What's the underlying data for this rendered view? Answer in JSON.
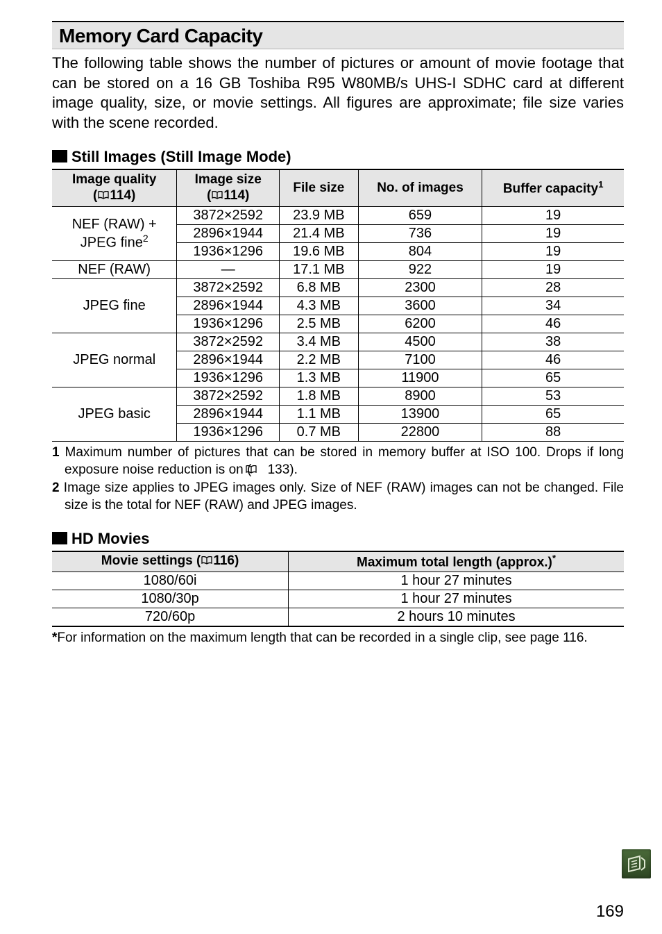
{
  "header": {
    "title": "Memory Card Capacity"
  },
  "intro": "The following table shows the number of pictures or amount of movie footage that can be stored on a 16 GB Toshiba R95 W80MB/s UHS-I SDHC card at different image quality, size, or movie settings. All figures are approximate; file size varies with the scene recorded.",
  "still": {
    "heading": "Still Images (Still Image Mode)",
    "columns": {
      "c1a": "Image quality",
      "c1b_ref": "114",
      "c2a": "Image size",
      "c2b_ref": "114",
      "c3": "File size",
      "c4": "No. of images",
      "c5": "Buffer capacity",
      "c5_sup": "1"
    },
    "groups": [
      {
        "label_line1": "NEF (RAW) +",
        "label_line2": "JPEG fine",
        "label_sup": "2",
        "rows": [
          {
            "size": "3872×2592",
            "file": "23.9 MB",
            "num": "659",
            "buf": "19"
          },
          {
            "size": "2896×1944",
            "file": "21.4 MB",
            "num": "736",
            "buf": "19"
          },
          {
            "size": "1936×1296",
            "file": "19.6 MB",
            "num": "804",
            "buf": "19"
          }
        ]
      },
      {
        "label_line1": "NEF (RAW)",
        "label_line2": "",
        "label_sup": "",
        "rows": [
          {
            "size": "―",
            "file": "17.1 MB",
            "num": "922",
            "buf": "19"
          }
        ]
      },
      {
        "label_line1": "JPEG fine",
        "label_line2": "",
        "label_sup": "",
        "rows": [
          {
            "size": "3872×2592",
            "file": "6.8 MB",
            "num": "2300",
            "buf": "28"
          },
          {
            "size": "2896×1944",
            "file": "4.3 MB",
            "num": "3600",
            "buf": "34"
          },
          {
            "size": "1936×1296",
            "file": "2.5 MB",
            "num": "6200",
            "buf": "46"
          }
        ]
      },
      {
        "label_line1": "JPEG normal",
        "label_line2": "",
        "label_sup": "",
        "rows": [
          {
            "size": "3872×2592",
            "file": "3.4 MB",
            "num": "4500",
            "buf": "38"
          },
          {
            "size": "2896×1944",
            "file": "2.2 MB",
            "num": "7100",
            "buf": "46"
          },
          {
            "size": "1936×1296",
            "file": "1.3 MB",
            "num": "11900",
            "buf": "65"
          }
        ]
      },
      {
        "label_line1": "JPEG basic",
        "label_line2": "",
        "label_sup": "",
        "rows": [
          {
            "size": "3872×2592",
            "file": "1.8 MB",
            "num": "8900",
            "buf": "53"
          },
          {
            "size": "2896×1944",
            "file": "1.1 MB",
            "num": "13900",
            "buf": "65"
          },
          {
            "size": "1936×1296",
            "file": "0.7 MB",
            "num": "22800",
            "buf": "88"
          }
        ]
      }
    ],
    "footnotes": [
      {
        "num": "1",
        "text": "Maximum number of pictures that can be stored in memory buffer at ISO 100. Drops if long exposure noise reduction is on (",
        "ref": "133",
        "after": ")."
      },
      {
        "num": "2",
        "text": "Image size applies to JPEG images only. Size of NEF (RAW) images can not be changed. File size is the total for NEF (RAW) and JPEG images.",
        "ref": "",
        "after": ""
      }
    ]
  },
  "hd": {
    "heading": "HD Movies",
    "columns": {
      "c1": "Movie settings (",
      "c1_ref": "116",
      "c1_after": ")",
      "c2": "Maximum total length (approx.)",
      "c2_sup": "*"
    },
    "rows": [
      {
        "setting": "1080/60i",
        "len": "1 hour 27 minutes"
      },
      {
        "setting": "1080/30p",
        "len": "1 hour 27 minutes"
      },
      {
        "setting": "720/60p",
        "len": "2 hours 10 minutes"
      }
    ],
    "footnote": {
      "star": "*",
      "text": "For information on the maximum length that can be recorded in a single clip, see page 116."
    }
  },
  "pageNumber": "169"
}
